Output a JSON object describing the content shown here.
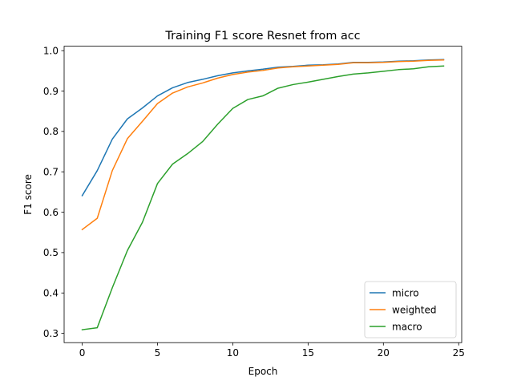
{
  "chart_data": {
    "type": "line",
    "title": "Training F1 score Resnet from acc",
    "xlabel": "Epoch",
    "ylabel": "F1 score",
    "xlim": [
      -1.2,
      25.2
    ],
    "ylim": [
      0.277,
      1.011
    ],
    "xticks": [
      0,
      5,
      10,
      15,
      20,
      25
    ],
    "yticks": [
      0.3,
      0.4,
      0.5,
      0.6,
      0.7,
      0.8,
      0.9,
      1.0
    ],
    "ytick_labels": [
      "0.3",
      "0.4",
      "0.5",
      "0.6",
      "0.7",
      "0.8",
      "0.9",
      "1.0"
    ],
    "grid": false,
    "legend_position": "lower-right",
    "x": [
      0,
      1,
      2,
      3,
      4,
      5,
      6,
      7,
      8,
      9,
      10,
      11,
      12,
      13,
      14,
      15,
      16,
      17,
      18,
      19,
      20,
      21,
      22,
      23,
      24
    ],
    "series": [
      {
        "name": "micro",
        "color": "#1f77b4",
        "values": [
          0.641,
          0.703,
          0.781,
          0.831,
          0.858,
          0.888,
          0.908,
          0.921,
          0.929,
          0.938,
          0.945,
          0.95,
          0.954,
          0.959,
          0.961,
          0.964,
          0.965,
          0.967,
          0.971,
          0.971,
          0.972,
          0.974,
          0.975,
          0.977,
          0.978
        ]
      },
      {
        "name": "weighted",
        "color": "#ff7f0e",
        "values": [
          0.557,
          0.585,
          0.703,
          0.782,
          0.825,
          0.869,
          0.895,
          0.91,
          0.92,
          0.932,
          0.941,
          0.947,
          0.951,
          0.957,
          0.96,
          0.962,
          0.964,
          0.966,
          0.97,
          0.97,
          0.971,
          0.973,
          0.974,
          0.976,
          0.977
        ]
      },
      {
        "name": "macro",
        "color": "#2ca02c",
        "values": [
          0.309,
          0.314,
          0.413,
          0.505,
          0.575,
          0.671,
          0.719,
          0.745,
          0.775,
          0.818,
          0.857,
          0.879,
          0.888,
          0.907,
          0.916,
          0.922,
          0.929,
          0.936,
          0.942,
          0.945,
          0.949,
          0.953,
          0.955,
          0.96,
          0.962
        ]
      }
    ]
  }
}
